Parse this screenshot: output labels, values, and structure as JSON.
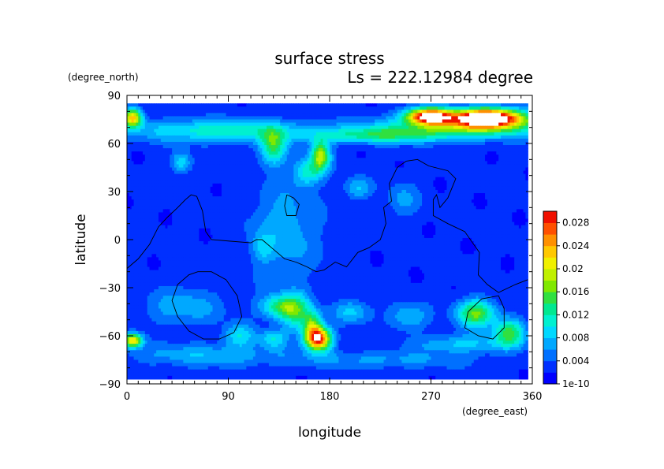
{
  "chart_data": {
    "type": "heatmap",
    "title": "surface stress",
    "subtitle": "Ls = 222.12984 degree",
    "xlabel": "longitude",
    "ylabel": "latitude",
    "x_units": "(degree_east)",
    "y_units": "(degree_north)",
    "xlim": [
      0,
      360
    ],
    "ylim": [
      -90,
      90
    ],
    "data_extent": {
      "lon": [
        0,
        356
      ],
      "lat": [
        -87,
        85
      ]
    },
    "x_ticks": [
      0,
      90,
      180,
      270,
      360
    ],
    "y_ticks": [
      -90,
      -60,
      -30,
      0,
      30,
      60,
      90
    ],
    "x_tick_labels": [
      "0",
      "90",
      "180",
      "270",
      "360"
    ],
    "y_tick_labels": [
      "−90",
      "−60",
      "−30",
      "0",
      "30",
      "60",
      "90"
    ],
    "colorbar": {
      "levels": [
        1e-10,
        0.002,
        0.004,
        0.006,
        0.008,
        0.01,
        0.012,
        0.014,
        0.016,
        0.018,
        0.02,
        0.022,
        0.024,
        0.026,
        0.028,
        0.03
      ],
      "tick_labels": [
        "1e-10",
        "0.004",
        "0.008",
        "0.012",
        "0.016",
        "0.02",
        "0.024",
        "0.028"
      ],
      "tick_values": [
        1e-10,
        0.004,
        0.008,
        0.012,
        0.016,
        0.02,
        0.024,
        0.028
      ],
      "colors": [
        "#0000ff",
        "#0030ff",
        "#0070ff",
        "#00a8ff",
        "#00d8ff",
        "#00f0d0",
        "#00e890",
        "#30e040",
        "#80e800",
        "#c0f000",
        "#f0f000",
        "#ffc800",
        "#ff9000",
        "#ff5000",
        "#f01000"
      ]
    },
    "background_value": 0.0025,
    "features": [
      {
        "lon": 268,
        "lat": 77,
        "sx": 14,
        "sy": 3.5,
        "amp": 0.028
      },
      {
        "lon": 320,
        "lat": 76,
        "sx": 22,
        "sy": 4,
        "amp": 0.034
      },
      {
        "lon": 300,
        "lat": 70,
        "sx": 55,
        "sy": 5,
        "amp": 0.012
      },
      {
        "lon": 5,
        "lat": 76,
        "sx": 6,
        "sy": 4,
        "amp": 0.02
      },
      {
        "lon": 80,
        "lat": 68,
        "sx": 55,
        "sy": 5,
        "amp": 0.009
      },
      {
        "lon": 220,
        "lat": 65,
        "sx": 40,
        "sy": 3.5,
        "amp": 0.009
      },
      {
        "lon": 130,
        "lat": 58,
        "sx": 8,
        "sy": 8,
        "amp": 0.012
      },
      {
        "lon": 172,
        "lat": 52,
        "sx": 6,
        "sy": 7,
        "amp": 0.016
      },
      {
        "lon": 160,
        "lat": 42,
        "sx": 8,
        "sy": 6,
        "amp": 0.008
      },
      {
        "lon": 48,
        "lat": 48,
        "sx": 6,
        "sy": 5,
        "amp": 0.007
      },
      {
        "lon": 205,
        "lat": 32,
        "sx": 8,
        "sy": 5,
        "amp": 0.006
      },
      {
        "lon": 245,
        "lat": 25,
        "sx": 10,
        "sy": 8,
        "amp": 0.004
      },
      {
        "lon": 140,
        "lat": 5,
        "sx": 22,
        "sy": 22,
        "amp": 0.005
      },
      {
        "lon": 120,
        "lat": -5,
        "sx": 6,
        "sy": 6,
        "amp": 0.004
      },
      {
        "lon": 135,
        "lat": -42,
        "sx": 12,
        "sy": 5,
        "amp": 0.01
      },
      {
        "lon": 150,
        "lat": -45,
        "sx": 10,
        "sy": 8,
        "amp": 0.01
      },
      {
        "lon": 165,
        "lat": -54,
        "sx": 6,
        "sy": 6,
        "amp": 0.012
      },
      {
        "lon": 170,
        "lat": -62,
        "sx": 8,
        "sy": 5,
        "amp": 0.026
      },
      {
        "lon": 100,
        "lat": -60,
        "sx": 10,
        "sy": 5,
        "amp": 0.007
      },
      {
        "lon": 130,
        "lat": -62,
        "sx": 8,
        "sy": 4,
        "amp": 0.007
      },
      {
        "lon": 5,
        "lat": -63,
        "sx": 6,
        "sy": 3,
        "amp": 0.02
      },
      {
        "lon": 50,
        "lat": -42,
        "sx": 25,
        "sy": 8,
        "amp": 0.005
      },
      {
        "lon": 70,
        "lat": -72,
        "sx": 50,
        "sy": 5,
        "amp": 0.005
      },
      {
        "lon": 200,
        "lat": -45,
        "sx": 12,
        "sy": 5,
        "amp": 0.006
      },
      {
        "lon": 250,
        "lat": -48,
        "sx": 12,
        "sy": 6,
        "amp": 0.006
      },
      {
        "lon": 310,
        "lat": -46,
        "sx": 12,
        "sy": 6,
        "amp": 0.014
      },
      {
        "lon": 340,
        "lat": -58,
        "sx": 10,
        "sy": 6,
        "amp": 0.012
      },
      {
        "lon": 300,
        "lat": -65,
        "sx": 30,
        "sy": 4,
        "amp": 0.006
      },
      {
        "lon": 230,
        "lat": -75,
        "sx": 60,
        "sy": 4,
        "amp": 0.004
      }
    ],
    "contours": [
      [
        [
          0,
          -18
        ],
        [
          10,
          -12
        ],
        [
          20,
          -3
        ],
        [
          28,
          8
        ],
        [
          36,
          14
        ],
        [
          45,
          20
        ],
        [
          52,
          25
        ],
        [
          57,
          28
        ],
        [
          62,
          27
        ],
        [
          67,
          18
        ],
        [
          70,
          5
        ],
        [
          75,
          0
        ],
        [
          92,
          -1
        ],
        [
          110,
          -2
        ],
        [
          115,
          0
        ],
        [
          120,
          0
        ],
        [
          130,
          -6
        ],
        [
          140,
          -12
        ],
        [
          150,
          -14
        ],
        [
          160,
          -17
        ],
        [
          168,
          -20
        ],
        [
          175,
          -19
        ],
        [
          185,
          -14
        ],
        [
          195,
          -17
        ],
        [
          205,
          -8
        ],
        [
          215,
          -5
        ],
        [
          225,
          0
        ],
        [
          230,
          10
        ],
        [
          228,
          20
        ],
        [
          235,
          24
        ],
        [
          233,
          35
        ],
        [
          240,
          45
        ],
        [
          248,
          49
        ],
        [
          258,
          50
        ],
        [
          268,
          46
        ],
        [
          285,
          43
        ],
        [
          292,
          38
        ],
        [
          285,
          26
        ],
        [
          278,
          20
        ],
        [
          275,
          28
        ],
        [
          272,
          25
        ],
        [
          272,
          15
        ],
        [
          285,
          10
        ],
        [
          300,
          5
        ],
        [
          313,
          -8
        ],
        [
          312,
          -22
        ],
        [
          320,
          -28
        ],
        [
          330,
          -33
        ],
        [
          345,
          -28
        ],
        [
          356,
          -25
        ]
      ],
      [
        [
          63,
          -20
        ],
        [
          75,
          -20
        ],
        [
          88,
          -25
        ],
        [
          98,
          -35
        ],
        [
          102,
          -48
        ],
        [
          95,
          -58
        ],
        [
          82,
          -62
        ],
        [
          68,
          -62
        ],
        [
          55,
          -57
        ],
        [
          45,
          -48
        ],
        [
          40,
          -38
        ],
        [
          45,
          -28
        ],
        [
          55,
          -22
        ],
        [
          63,
          -20
        ]
      ],
      [
        [
          315,
          -37
        ],
        [
          330,
          -35
        ],
        [
          335,
          -43
        ],
        [
          335,
          -55
        ],
        [
          325,
          -62
        ],
        [
          312,
          -60
        ],
        [
          300,
          -55
        ],
        [
          303,
          -45
        ],
        [
          315,
          -37
        ]
      ],
      [
        [
          142,
          28
        ],
        [
          148,
          26
        ],
        [
          153,
          22
        ],
        [
          150,
          15
        ],
        [
          142,
          15
        ],
        [
          140,
          21
        ],
        [
          142,
          28
        ]
      ]
    ]
  }
}
